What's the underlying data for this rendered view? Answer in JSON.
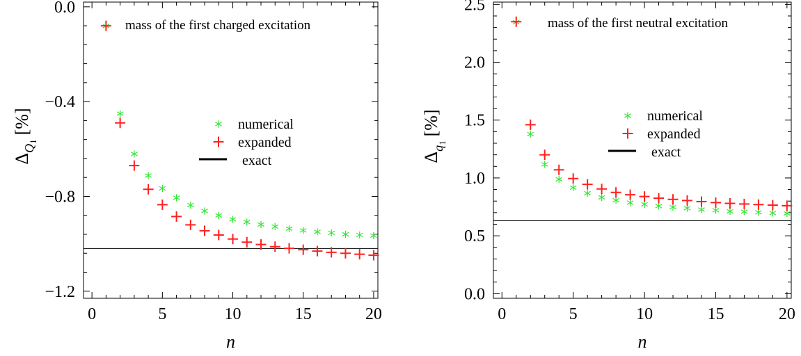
{
  "chart_data": [
    {
      "type": "scatter",
      "annotation": "mass of the first charged excitation",
      "ylabel_main": "Δ",
      "ylabel_sub": "Q",
      "ylabel_subsub": "1",
      "ylabel_unit": "[%]",
      "xlabel": "n",
      "xlim": [
        -0.6,
        20.3
      ],
      "ylim": [
        -1.23,
        0.02
      ],
      "x_major_ticks": [
        0,
        5,
        10,
        15,
        20
      ],
      "x_tick_labels": [
        "0",
        "5",
        "10",
        "15",
        "20"
      ],
      "y_major_ticks": [
        0.0,
        -0.4,
        -0.8,
        -1.2
      ],
      "y_tick_labels": [
        "0.0",
        "−0.4",
        "−0.8",
        "−1.2"
      ],
      "legend_placement": "center-right",
      "exact_value": -1.02,
      "series": [
        {
          "name": "numerical",
          "marker": "star",
          "color": "#33e533",
          "x": [
            1,
            2,
            3,
            4,
            5,
            6,
            7,
            8,
            9,
            10,
            11,
            12,
            13,
            14,
            15,
            16,
            17,
            18,
            19,
            20
          ],
          "y": [
            -0.08,
            -0.45,
            -0.62,
            -0.71,
            -0.765,
            -0.805,
            -0.835,
            -0.86,
            -0.88,
            -0.895,
            -0.907,
            -0.918,
            -0.927,
            -0.935,
            -0.942,
            -0.948,
            -0.953,
            -0.958,
            -0.962,
            -0.965
          ]
        },
        {
          "name": "expanded",
          "marker": "plus",
          "color": "#ff2020",
          "x": [
            1,
            2,
            3,
            4,
            5,
            6,
            7,
            8,
            9,
            10,
            11,
            12,
            13,
            14,
            15,
            16,
            17,
            18,
            19,
            20
          ],
          "y": [
            -0.08,
            -0.49,
            -0.67,
            -0.77,
            -0.835,
            -0.885,
            -0.92,
            -0.945,
            -0.963,
            -0.98,
            -0.993,
            -1.003,
            -1.012,
            -1.019,
            -1.025,
            -1.031,
            -1.036,
            -1.04,
            -1.044,
            -1.048
          ]
        },
        {
          "name": "exact",
          "marker": "line",
          "color": "#000000"
        }
      ]
    },
    {
      "type": "scatter",
      "annotation": "mass of the first neutral excitation",
      "ylabel_main": "Δ",
      "ylabel_sub": "q",
      "ylabel_subsub": "1",
      "ylabel_unit": "[%]",
      "xlabel": "n",
      "xlim": [
        -0.6,
        20.3
      ],
      "ylim": [
        -0.04,
        2.52
      ],
      "x_major_ticks": [
        0,
        5,
        10,
        15,
        20
      ],
      "x_tick_labels": [
        "0",
        "5",
        "10",
        "15",
        "20"
      ],
      "y_major_ticks": [
        0.0,
        0.5,
        1.0,
        1.5,
        2.0,
        2.5
      ],
      "y_tick_labels": [
        "0.0",
        "0.5",
        "1.0",
        "1.5",
        "2.0",
        "2.5"
      ],
      "legend_placement": "center-right",
      "exact_value": 0.63,
      "series": [
        {
          "name": "numerical",
          "marker": "star",
          "color": "#33e533",
          "x": [
            1,
            2,
            3,
            4,
            5,
            6,
            7,
            8,
            9,
            10,
            11,
            12,
            13,
            14,
            15,
            16,
            17,
            18,
            19,
            20
          ],
          "y": [
            2.35,
            1.38,
            1.12,
            0.99,
            0.92,
            0.87,
            0.835,
            0.81,
            0.79,
            0.775,
            0.76,
            0.75,
            0.74,
            0.73,
            0.722,
            0.715,
            0.71,
            0.705,
            0.7,
            0.695
          ]
        },
        {
          "name": "expanded",
          "marker": "plus",
          "color": "#ff2020",
          "x": [
            1,
            2,
            3,
            4,
            5,
            6,
            7,
            8,
            9,
            10,
            11,
            12,
            13,
            14,
            15,
            16,
            17,
            18,
            19,
            20
          ],
          "y": [
            2.35,
            1.46,
            1.2,
            1.07,
            0.995,
            0.945,
            0.905,
            0.875,
            0.855,
            0.84,
            0.825,
            0.815,
            0.805,
            0.795,
            0.787,
            0.78,
            0.775,
            0.77,
            0.765,
            0.76
          ]
        },
        {
          "name": "exact",
          "marker": "line",
          "color": "#000000"
        }
      ]
    }
  ]
}
